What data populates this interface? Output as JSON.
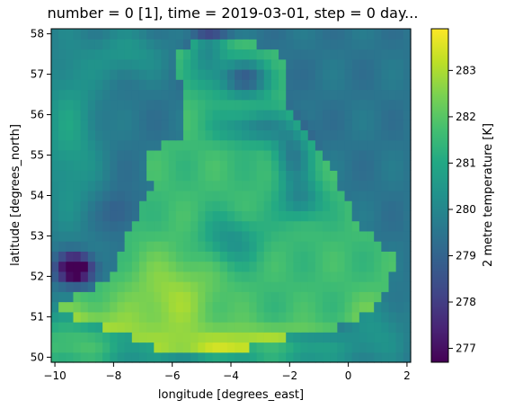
{
  "chart_data": {
    "type": "heatmap",
    "title": "number = 0 [1], time = 2019-03-01, step = 0 day...",
    "xlabel": "longitude [degrees_east]",
    "ylabel": "latitude [degrees_north]",
    "xlim": [
      -10.125,
      2.125
    ],
    "ylim": [
      49.875,
      58.125
    ],
    "x_ticks": [
      -10,
      -8,
      -6,
      -4,
      -2,
      0,
      2
    ],
    "x_tick_labels": [
      "−10",
      "−8",
      "−6",
      "−4",
      "−2",
      "0",
      "2"
    ],
    "y_ticks": [
      50,
      51,
      52,
      53,
      54,
      55,
      56,
      57,
      58
    ],
    "y_tick_labels": [
      "50",
      "51",
      "52",
      "53",
      "54",
      "55",
      "56",
      "57",
      "58"
    ],
    "grid_resolution": 0.25,
    "colormap": "viridis",
    "colorbar": {
      "label": "2 metre temperature [K]",
      "vmin": 276.7,
      "vmax": 283.9,
      "ticks": [
        277,
        278,
        279,
        280,
        281,
        282,
        283
      ],
      "tick_labels": [
        "277",
        "278",
        "279",
        "280",
        "281",
        "282",
        "283"
      ]
    },
    "field": {
      "background": 279.6,
      "land_base": 281.6,
      "warm_regions": [
        {
          "lon": -9.5,
          "lat": 50.3,
          "sx": 2.2,
          "sy": 0.8,
          "amp": 2.3
        },
        {
          "lon": -3.0,
          "lat": 50.2,
          "sx": 3.0,
          "sy": 0.5,
          "amp": 1.9
        },
        {
          "lon": -9.5,
          "lat": 55.5,
          "sx": 1.0,
          "sy": 2.2,
          "amp": 1.3
        },
        {
          "lon": -6.0,
          "lat": 51.5,
          "sx": 1.6,
          "sy": 1.1,
          "amp": 1.2
        },
        {
          "lon": -7.5,
          "lat": 57.5,
          "sx": 1.2,
          "sy": 0.6,
          "amp": 1.0
        },
        {
          "lon": 1.0,
          "lat": 50.8,
          "sx": 1.0,
          "sy": 0.8,
          "amp": 0.8
        }
      ],
      "cold_regions": [
        {
          "lon": -3.5,
          "lat": 56.9,
          "sx": 0.9,
          "sy": 0.45,
          "amp": 2.6
        },
        {
          "lon": -4.8,
          "lat": 57.5,
          "sx": 0.6,
          "sy": 0.8,
          "amp": 1.5
        },
        {
          "lon": -3.2,
          "lat": 55.7,
          "sx": 1.2,
          "sy": 0.4,
          "amp": 1.7
        },
        {
          "lon": -1.9,
          "lat": 55.0,
          "sx": 0.6,
          "sy": 0.7,
          "amp": 1.9
        },
        {
          "lon": -1.6,
          "lat": 53.9,
          "sx": 0.7,
          "sy": 0.5,
          "amp": 1.6
        },
        {
          "lon": -4.0,
          "lat": 52.9,
          "sx": 1.0,
          "sy": 0.6,
          "amp": 1.3
        },
        {
          "lon": -9.3,
          "lat": 52.2,
          "sx": 0.6,
          "sy": 0.35,
          "amp": 4.0
        },
        {
          "lon": -7.8,
          "lat": 53.6,
          "sx": 0.6,
          "sy": 0.5,
          "amp": 0.8
        }
      ],
      "coast_points": [
        [
          -10.0,
          51.2
        ],
        [
          -9.2,
          51.6
        ],
        [
          -8.2,
          51.9
        ],
        [
          -7.5,
          53.0
        ],
        [
          -6.7,
          54.3
        ],
        [
          -7.0,
          55.1
        ],
        [
          -5.7,
          55.4
        ],
        [
          -5.6,
          56.5
        ],
        [
          -6.0,
          57.6
        ],
        [
          -4.3,
          58.0
        ],
        [
          -3.2,
          57.8
        ],
        [
          -2.0,
          57.3
        ],
        [
          -2.2,
          56.3
        ],
        [
          -1.4,
          55.5
        ],
        [
          -0.3,
          54.3
        ],
        [
          0.2,
          53.4
        ],
        [
          1.6,
          52.5
        ],
        [
          1.2,
          51.4
        ],
        [
          0.0,
          50.8
        ],
        [
          -1.5,
          50.6
        ],
        [
          -3.5,
          50.2
        ],
        [
          -5.7,
          50.0
        ]
      ],
      "sea_temperature": 279.5
    }
  }
}
